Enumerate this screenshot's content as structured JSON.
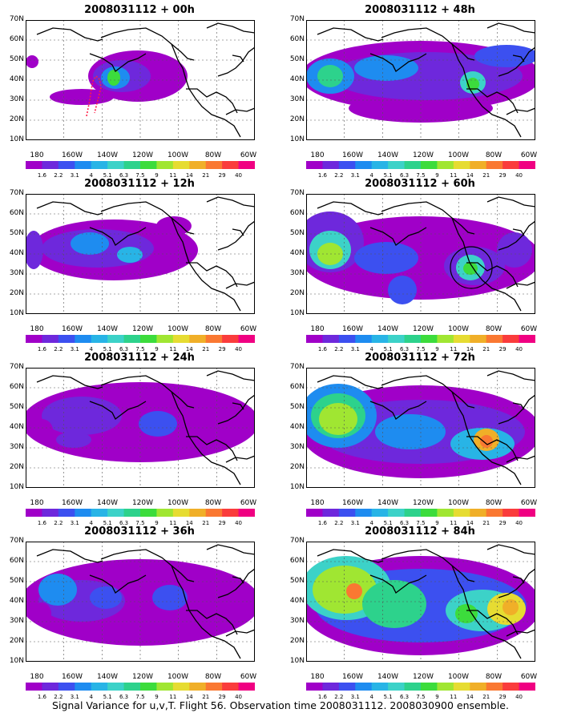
{
  "panels": [
    {
      "title": "2008031112 + 00h"
    },
    {
      "title": "2008031112 + 48h"
    },
    {
      "title": "2008031112 + 12h"
    },
    {
      "title": "2008031112 + 60h"
    },
    {
      "title": "2008031112 + 24h"
    },
    {
      "title": "2008031112 + 72h"
    },
    {
      "title": "2008031112 + 36h"
    },
    {
      "title": "2008031112 + 84h"
    }
  ],
  "lat_labels": [
    "70N",
    "60N",
    "50N",
    "40N",
    "30N",
    "20N",
    "10N"
  ],
  "lon_labels": [
    "180",
    "160W",
    "140W",
    "120W",
    "100W",
    "80W",
    "60W"
  ],
  "colorbar": {
    "labels": [
      "1.6",
      "2.2",
      "3.1",
      "4",
      "5.1",
      "6.3",
      "7.5",
      "9",
      "11",
      "14",
      "21",
      "29",
      "40"
    ],
    "colors": [
      "#a000c8",
      "#6e28dc",
      "#3c50f0",
      "#1e8cf0",
      "#28b4e6",
      "#3cd2c8",
      "#2dd28c",
      "#3cdc3c",
      "#a0e632",
      "#e6dc32",
      "#f0af28",
      "#fa7832",
      "#fa3c3c",
      "#f00082"
    ]
  },
  "footer": "Signal Variance for u,v,T. Flight 56. Observation time 2008031112. 2008030900 ensemble."
}
